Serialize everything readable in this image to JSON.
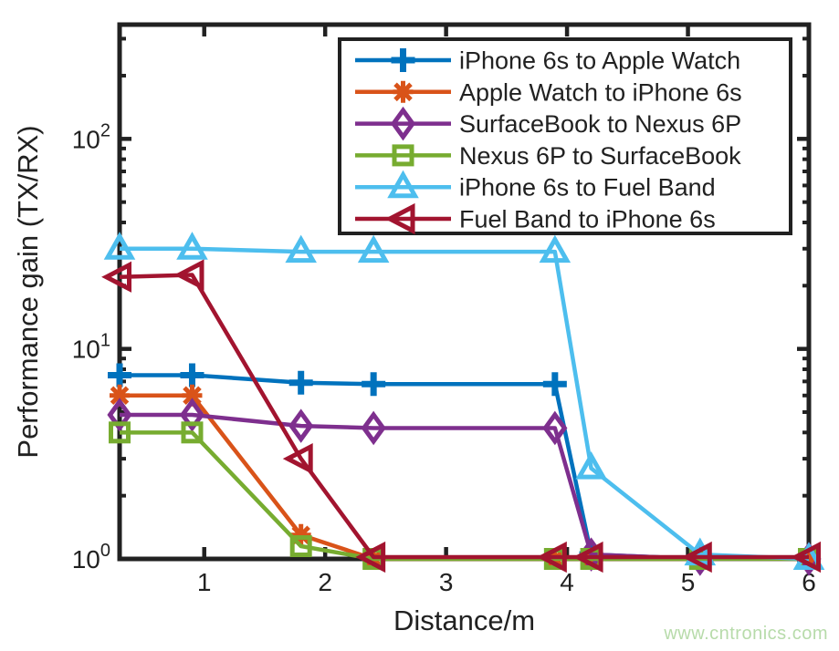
{
  "figure": {
    "watermark": "www.cntronics.com",
    "watermark_color": "#b7dbaa",
    "ink_color": "#212121",
    "background": "#ffffff"
  },
  "chart_data": {
    "type": "line",
    "title": "",
    "xlabel": "Distance/m",
    "ylabel": "Performance gain (TX/RX)",
    "x_scale": "linear",
    "y_scale": "log",
    "xlim": [
      0.3,
      6.0
    ],
    "ylim": [
      1,
      350
    ],
    "grid": false,
    "legend_position": "top-right-inside",
    "x_ticks": [
      1,
      2,
      3,
      4,
      5,
      6
    ],
    "x_tick_labels": [
      "1",
      "2",
      "3",
      "4",
      "5",
      "6"
    ],
    "y_ticks": [
      1,
      10,
      100
    ],
    "y_tick_labels": [
      "10^0",
      "10^1",
      "10^2"
    ],
    "x": [
      0.3,
      0.9,
      1.8,
      2.4,
      3.9,
      4.2,
      5.1,
      6.0
    ],
    "series": [
      {
        "name": "iPhone 6s to Apple Watch",
        "color": "#0072BD",
        "marker": "plus",
        "values": [
          7.5,
          7.5,
          6.9,
          6.8,
          6.8,
          1.05,
          1.0,
          1.0
        ]
      },
      {
        "name": "Apple Watch to iPhone 6s",
        "color": "#D95319",
        "marker": "asterisk",
        "values": [
          6.0,
          6.0,
          1.3,
          1.0,
          1.0,
          1.0,
          1.0,
          1.0
        ]
      },
      {
        "name": "SurfaceBook to Nexus 6P",
        "color": "#7E2F8E",
        "marker": "diamond",
        "values": [
          4.85,
          4.85,
          4.3,
          4.2,
          4.2,
          1.05,
          1.0,
          1.0
        ]
      },
      {
        "name": "Nexus 6P to SurfaceBook",
        "color": "#77AC30",
        "marker": "square",
        "values": [
          4.0,
          4.0,
          1.15,
          1.0,
          1.0,
          1.0,
          1.0,
          1.0
        ]
      },
      {
        "name": "iPhone 6s to Fuel Band",
        "color": "#4DBEEE",
        "marker": "triangle-up",
        "values": [
          30,
          30,
          29,
          29,
          29,
          2.7,
          1.05,
          1.0
        ]
      },
      {
        "name": "Fuel Band to iPhone 6s",
        "color": "#A2142F",
        "marker": "triangle-left",
        "values": [
          22,
          22.5,
          3.0,
          1.02,
          1.02,
          1.02,
          1.02,
          1.02
        ]
      }
    ]
  }
}
